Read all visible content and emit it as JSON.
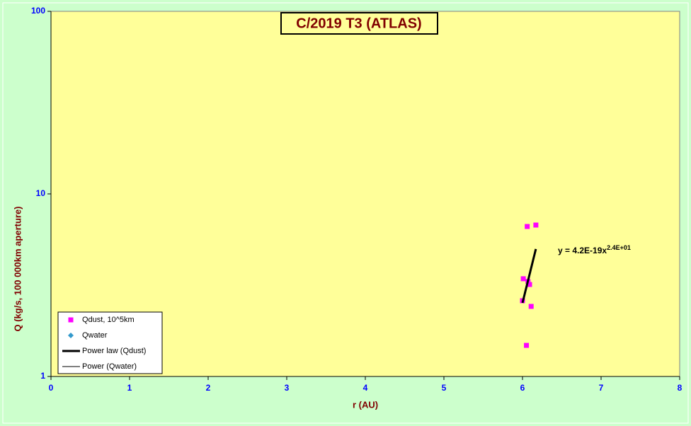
{
  "chart_data": {
    "type": "scatter",
    "title": "C/2019 T3 (ATLAS)",
    "x_label": "r (AU)",
    "y_label": "Q (kg/s, 100 000km aperture)",
    "xlim": [
      0,
      8
    ],
    "xticks": [
      0,
      1,
      2,
      3,
      4,
      5,
      6,
      7,
      8
    ],
    "ylim": [
      1,
      100
    ],
    "yticks": [
      1,
      10,
      100
    ],
    "y_scale": "log",
    "series": [
      {
        "name": "Qdust, 10^5km",
        "color": "#ff00ff",
        "style": "markers",
        "marker": "square",
        "x": [
          6.0,
          6.01,
          6.06,
          6.17,
          6.07,
          6.09,
          6.11,
          6.05
        ],
        "values": [
          2.6,
          3.43,
          6.63,
          6.75,
          3.31,
          3.19,
          2.42,
          1.48
        ]
      },
      {
        "name": "Qwater",
        "color": "#3399cc",
        "style": "markers",
        "marker": "diamond",
        "x": [],
        "values": []
      },
      {
        "name": "Power law (Qdust)",
        "color": "#000000",
        "style": "thick-line",
        "x": [
          6.0,
          6.17
        ],
        "values": [
          2.53,
          4.99
        ]
      },
      {
        "name": "Power (Qwater)",
        "color": "#000000",
        "style": "thin-line",
        "x": [],
        "values": []
      }
    ],
    "annotation": {
      "text": "y = 4.2E-19x",
      "exponent": "2.4E+01"
    },
    "legend": "lower-left"
  }
}
